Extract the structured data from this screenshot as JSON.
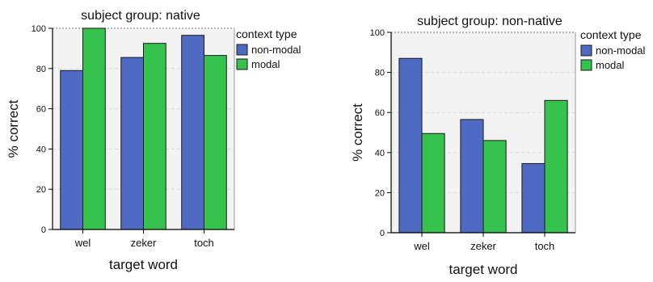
{
  "colors": {
    "non_modal": "#4f6ac2",
    "modal": "#35c24d",
    "plot_bg": "#f2f2f2",
    "grid": "#d9d9d9"
  },
  "chart_data": [
    {
      "type": "bar",
      "title": "subject group: native",
      "xlabel": "target word",
      "ylabel": "% correct",
      "categories": [
        "wel",
        "zeker",
        "toch"
      ],
      "ylim": [
        0,
        100
      ],
      "yticks": [
        0,
        20,
        40,
        60,
        80,
        100
      ],
      "grid": true,
      "legend": {
        "title": "context type",
        "placement": "right"
      },
      "series": [
        {
          "name": "non-modal",
          "color": "#4f6ac2",
          "values": [
            79,
            85.5,
            96.5
          ]
        },
        {
          "name": "modal",
          "color": "#35c24d",
          "values": [
            100,
            92.5,
            86.5
          ]
        }
      ]
    },
    {
      "type": "bar",
      "title": "subject group: non-native",
      "xlabel": "target word",
      "ylabel": "% correct",
      "categories": [
        "wel",
        "zeker",
        "toch"
      ],
      "ylim": [
        0,
        100
      ],
      "yticks": [
        0,
        20,
        40,
        60,
        80,
        100
      ],
      "grid": true,
      "legend": {
        "title": "context type",
        "placement": "right"
      },
      "series": [
        {
          "name": "non-modal",
          "color": "#4f6ac2",
          "values": [
            87,
            56.5,
            34.5
          ]
        },
        {
          "name": "modal",
          "color": "#35c24d",
          "values": [
            49.5,
            46,
            66
          ]
        }
      ]
    }
  ]
}
